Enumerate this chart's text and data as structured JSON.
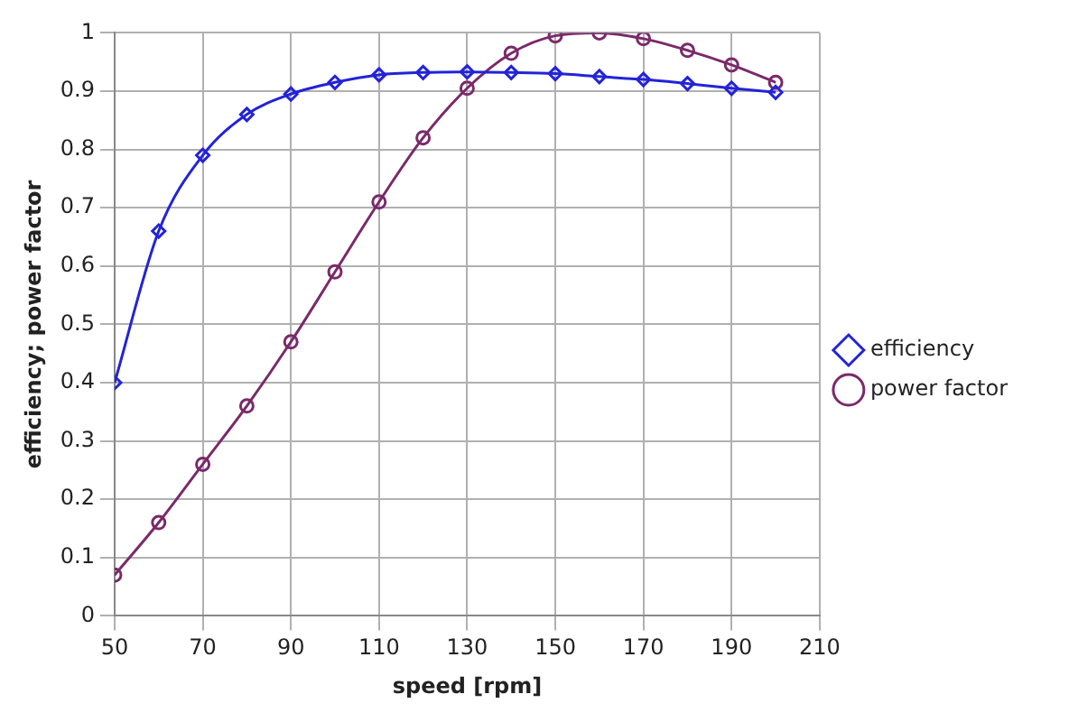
{
  "chart_data": {
    "type": "line",
    "xlabel": "speed [rpm]",
    "ylabel": "efficiency; power factor",
    "xlim": [
      50,
      210
    ],
    "xticks": [
      50,
      70,
      90,
      110,
      130,
      150,
      170,
      190,
      210
    ],
    "ylim": [
      0,
      1
    ],
    "yticks": [
      0,
      0.1,
      0.2,
      0.3,
      0.4,
      0.5,
      0.6,
      0.7,
      0.8,
      0.9,
      1
    ],
    "grid": true,
    "legend": "right",
    "line_style": "solid",
    "x": [
      50,
      60,
      70,
      80,
      90,
      100,
      110,
      120,
      130,
      140,
      150,
      160,
      170,
      180,
      190,
      200
    ],
    "series": [
      {
        "name": "efficiency",
        "color": "#2323d8",
        "marker": "diamond",
        "values": [
          0.4,
          0.66,
          0.79,
          0.86,
          0.895,
          0.915,
          0.928,
          0.932,
          0.933,
          0.932,
          0.93,
          0.925,
          0.92,
          0.913,
          0.905,
          0.898
        ]
      },
      {
        "name": "power factor",
        "color": "#7a2a6a",
        "marker": "circle",
        "values": [
          0.07,
          0.16,
          0.26,
          0.36,
          0.47,
          0.59,
          0.71,
          0.82,
          0.905,
          0.965,
          0.995,
          1.0,
          0.99,
          0.97,
          0.945,
          0.915
        ]
      }
    ]
  }
}
